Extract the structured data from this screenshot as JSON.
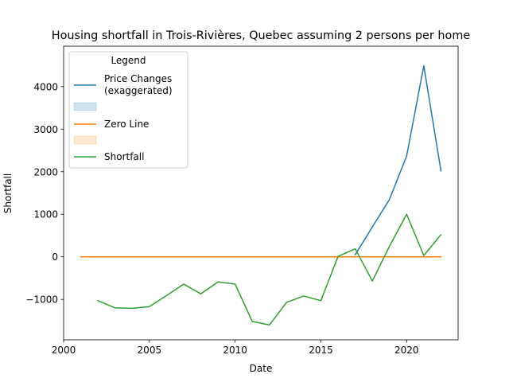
{
  "chart_data": {
    "type": "line",
    "title": "Housing shortfall in Trois-Rivières, Quebec assuming 2 persons per home",
    "xlabel": "Date",
    "ylabel": "Shortfall",
    "xlim": [
      2000,
      2023
    ],
    "ylim": [
      -1950,
      4950
    ],
    "x_ticks": [
      2000,
      2005,
      2010,
      2015,
      2020
    ],
    "y_ticks": [
      -1000,
      0,
      1000,
      2000,
      3000,
      4000
    ],
    "grid": false,
    "legend": {
      "title": "Legend",
      "placement": "top-left",
      "entries": [
        {
          "label": "Price Changes\n(exaggerated)",
          "kind": "line",
          "color": "#1f77b4"
        },
        {
          "label": "",
          "kind": "patch",
          "color": "#1f77b4"
        },
        {
          "label": "Zero Line",
          "kind": "line",
          "color": "#ff7f0e"
        },
        {
          "label": "",
          "kind": "patch",
          "color": "#ff7f0e"
        },
        {
          "label": "Shortfall",
          "kind": "line",
          "color": "#2ca02c"
        }
      ]
    },
    "series": [
      {
        "name": "Price Changes\n(exaggerated)",
        "color": "#1f77b4",
        "x": [
          2017,
          2018,
          2019,
          2020,
          2021,
          2022
        ],
        "y": [
          50,
          700,
          1350,
          2370,
          4490,
          2020
        ]
      },
      {
        "name": "Zero Line",
        "color": "#ff7f0e",
        "x": [
          2001,
          2022
        ],
        "y": [
          0,
          0
        ]
      },
      {
        "name": "Shortfall",
        "color": "#2ca02c",
        "x": [
          2002,
          2003,
          2004,
          2005,
          2006,
          2007,
          2008,
          2009,
          2010,
          2011,
          2012,
          2013,
          2014,
          2015,
          2016,
          2017,
          2018,
          2019,
          2020,
          2021,
          2022
        ],
        "y": [
          -1030,
          -1200,
          -1210,
          -1170,
          -910,
          -640,
          -870,
          -590,
          -640,
          -1520,
          -1600,
          -1070,
          -920,
          -1030,
          10,
          190,
          -570,
          250,
          1000,
          30,
          520
        ]
      }
    ]
  }
}
